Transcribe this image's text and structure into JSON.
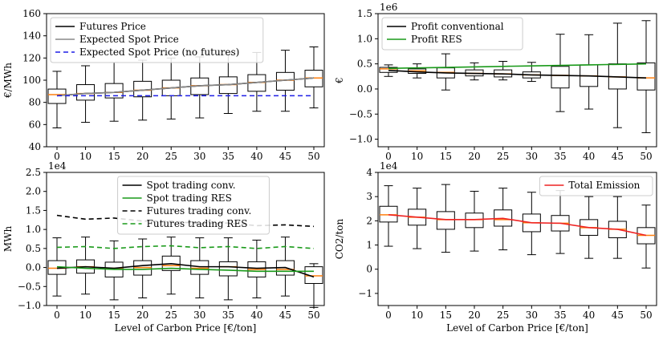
{
  "chart_data": [
    {
      "type": "box+line",
      "ylabel": "€/MWh",
      "xlabel": "",
      "ylim": [
        40,
        160
      ],
      "yticks": [
        40,
        60,
        80,
        100,
        120,
        140,
        160
      ],
      "categories": [
        "0",
        "10",
        "15",
        "20",
        "25",
        "30",
        "35",
        "40",
        "45",
        "50"
      ],
      "ytick_labels": [
        "40",
        "60",
        "80",
        "100",
        "120",
        "140",
        "160"
      ],
      "boxes": [
        {
          "wlo": 57,
          "q1": 79,
          "med": 87,
          "q3": 92,
          "whi": 108
        },
        {
          "wlo": 62,
          "q1": 82,
          "med": 88,
          "q3": 96,
          "whi": 113
        },
        {
          "wlo": 63,
          "q1": 84,
          "med": 89,
          "q3": 97,
          "whi": 116
        },
        {
          "wlo": 64,
          "q1": 85,
          "med": 91,
          "q3": 99,
          "whi": 118
        },
        {
          "wlo": 65,
          "q1": 86,
          "med": 93,
          "q3": 100,
          "whi": 120
        },
        {
          "wlo": 66,
          "q1": 87,
          "med": 95,
          "q3": 102,
          "whi": 121
        },
        {
          "wlo": 70,
          "q1": 88,
          "med": 96,
          "q3": 103,
          "whi": 123
        },
        {
          "wlo": 72,
          "q1": 90,
          "med": 98,
          "q3": 105,
          "whi": 125
        },
        {
          "wlo": 72,
          "q1": 91,
          "med": 100,
          "q3": 107,
          "whi": 127
        },
        {
          "wlo": 75,
          "q1": 94,
          "med": 102,
          "q3": 109,
          "whi": 130
        }
      ],
      "series": [
        {
          "name": "Futures Price",
          "color": "#000000",
          "dash": "",
          "values": [
            86,
            88,
            89,
            91,
            93,
            95,
            96,
            98,
            100,
            102
          ]
        },
        {
          "name": "Expected Spot Price",
          "color": "#888888",
          "dash": "",
          "values": [
            86,
            88,
            89,
            91,
            93,
            95,
            96,
            98,
            100,
            102
          ]
        },
        {
          "name": "Expected Spot Price (no futures)",
          "color": "#1f1fe6",
          "dash": "6,4",
          "values": [
            86,
            86,
            86,
            86,
            86,
            86,
            86,
            86,
            86,
            86
          ]
        }
      ],
      "legend": "top-left",
      "exponent": ""
    },
    {
      "type": "box+line",
      "ylabel": "€",
      "xlabel": "",
      "ylim": [
        -1.15,
        1.5
      ],
      "yticks": [
        -1.0,
        -0.5,
        0.0,
        0.5,
        1.0,
        1.5
      ],
      "categories": [
        "0",
        "10",
        "15",
        "20",
        "25",
        "30",
        "35",
        "40",
        "45",
        "50"
      ],
      "ytick_labels": [
        "−1.0",
        "−0.5",
        "0.0",
        "0.5",
        "1.0",
        "1.5"
      ],
      "boxes": [
        {
          "wlo": 0.25,
          "q1": 0.33,
          "med": 0.4,
          "q3": 0.43,
          "whi": 0.48
        },
        {
          "wlo": 0.22,
          "q1": 0.31,
          "med": 0.36,
          "q3": 0.4,
          "whi": 0.5
        },
        {
          "wlo": -0.02,
          "q1": 0.22,
          "med": 0.33,
          "q3": 0.42,
          "whi": 0.7
        },
        {
          "wlo": 0.18,
          "q1": 0.26,
          "med": 0.31,
          "q3": 0.38,
          "whi": 0.52
        },
        {
          "wlo": 0.18,
          "q1": 0.24,
          "med": 0.3,
          "q3": 0.38,
          "whi": 0.55
        },
        {
          "wlo": 0.15,
          "q1": 0.22,
          "med": 0.28,
          "q3": 0.34,
          "whi": 0.53
        },
        {
          "wlo": -0.45,
          "q1": 0.02,
          "med": 0.27,
          "q3": 0.45,
          "whi": 1.09
        },
        {
          "wlo": -0.4,
          "q1": 0.05,
          "med": 0.26,
          "q3": 0.48,
          "whi": 1.08
        },
        {
          "wlo": -0.77,
          "q1": 0.0,
          "med": 0.24,
          "q3": 0.5,
          "whi": 1.31
        },
        {
          "wlo": -0.87,
          "q1": -0.02,
          "med": 0.22,
          "q3": 0.52,
          "whi": 1.36
        }
      ],
      "series": [
        {
          "name": "Profit conventional",
          "color": "#000000",
          "dash": "",
          "values": [
            0.37,
            0.34,
            0.32,
            0.31,
            0.3,
            0.28,
            0.27,
            0.26,
            0.24,
            0.22
          ]
        },
        {
          "name": "Profit RES",
          "color": "#1a9a1a",
          "dash": "",
          "values": [
            0.41,
            0.42,
            0.43,
            0.44,
            0.45,
            0.46,
            0.47,
            0.48,
            0.49,
            0.5
          ]
        }
      ],
      "legend": "top-left",
      "exponent": "1e6"
    },
    {
      "type": "box+line",
      "ylabel": "MWh",
      "xlabel": "Level of Carbon Price [€/ton]",
      "ylim": [
        -1.0,
        2.5
      ],
      "yticks": [
        -1.0,
        -0.5,
        0.0,
        0.5,
        1.0,
        1.5,
        2.0,
        2.5
      ],
      "categories": [
        "0",
        "10",
        "15",
        "20",
        "25",
        "30",
        "35",
        "40",
        "45",
        "50"
      ],
      "ytick_labels": [
        "−1.0",
        "−0.5",
        "0.0",
        "0.5",
        "1.0",
        "1.5",
        "2.0",
        "2.5"
      ],
      "boxes": [
        {
          "wlo": -0.75,
          "q1": -0.18,
          "med": -0.02,
          "q3": 0.18,
          "whi": 0.78
        },
        {
          "wlo": -0.7,
          "q1": -0.15,
          "med": 0.02,
          "q3": 0.2,
          "whi": 0.8
        },
        {
          "wlo": -0.85,
          "q1": -0.25,
          "med": -0.02,
          "q3": 0.14,
          "whi": 0.7
        },
        {
          "wlo": -0.8,
          "q1": -0.2,
          "med": 0.0,
          "q3": 0.18,
          "whi": 0.75
        },
        {
          "wlo": -0.7,
          "q1": -0.08,
          "med": 0.05,
          "q3": 0.3,
          "whi": 0.8
        },
        {
          "wlo": -0.8,
          "q1": -0.18,
          "med": -0.02,
          "q3": 0.18,
          "whi": 0.78
        },
        {
          "wlo": -0.85,
          "q1": -0.22,
          "med": 0.02,
          "q3": 0.15,
          "whi": 0.78
        },
        {
          "wlo": -0.8,
          "q1": -0.25,
          "med": -0.05,
          "q3": 0.15,
          "whi": 0.72
        },
        {
          "wlo": -0.75,
          "q1": -0.2,
          "med": -0.05,
          "q3": 0.18,
          "whi": 0.8
        },
        {
          "wlo": -1.05,
          "q1": -0.42,
          "med": -0.22,
          "q3": 0.02,
          "whi": 0.1
        }
      ],
      "series": [
        {
          "name": "Spot trading conv.",
          "color": "#000000",
          "dash": "",
          "values": [
            -0.02,
            0.02,
            -0.02,
            0.05,
            0.1,
            0.02,
            0.02,
            -0.02,
            0.0,
            -0.25
          ]
        },
        {
          "name": "Spot trading RES",
          "color": "#1a9a1a",
          "dash": "",
          "values": [
            0.02,
            -0.02,
            -0.05,
            -0.05,
            -0.02,
            -0.05,
            -0.07,
            -0.1,
            -0.1,
            -0.1
          ]
        },
        {
          "name": "Futures trading conv.",
          "color": "#000000",
          "dash": "6,4",
          "values": [
            1.37,
            1.27,
            1.3,
            1.22,
            1.22,
            1.15,
            1.17,
            1.1,
            1.12,
            1.08
          ]
        },
        {
          "name": "Futures trading RES",
          "color": "#1a9a1a",
          "dash": "6,4",
          "values": [
            0.53,
            0.55,
            0.5,
            0.55,
            0.57,
            0.52,
            0.55,
            0.5,
            0.55,
            0.5
          ]
        }
      ],
      "legend": "top-center",
      "exponent": "1e4"
    },
    {
      "type": "box+line",
      "ylabel": "CO2/ton",
      "xlabel": "Level of Carbon Price [€/ton]",
      "ylim": [
        -1.5,
        4.0
      ],
      "yticks": [
        -1,
        0,
        1,
        2,
        3,
        4
      ],
      "categories": [
        "0",
        "10",
        "15",
        "20",
        "25",
        "30",
        "35",
        "40",
        "45",
        "50"
      ],
      "ytick_labels": [
        "−1",
        "0",
        "1",
        "2",
        "3",
        "4"
      ],
      "boxes": [
        {
          "wlo": 0.95,
          "q1": 1.95,
          "med": 2.25,
          "q3": 2.6,
          "whi": 3.45
        },
        {
          "wlo": 0.85,
          "q1": 1.82,
          "med": 2.15,
          "q3": 2.48,
          "whi": 3.35
        },
        {
          "wlo": 0.7,
          "q1": 1.65,
          "med": 2.05,
          "q3": 2.38,
          "whi": 3.5
        },
        {
          "wlo": 0.75,
          "q1": 1.72,
          "med": 2.05,
          "q3": 2.32,
          "whi": 3.22
        },
        {
          "wlo": 0.8,
          "q1": 1.78,
          "med": 2.05,
          "q3": 2.45,
          "whi": 3.35
        },
        {
          "wlo": 0.6,
          "q1": 1.55,
          "med": 1.92,
          "q3": 2.28,
          "whi": 3.18
        },
        {
          "wlo": 0.65,
          "q1": 1.58,
          "med": 1.9,
          "q3": 2.22,
          "whi": 3.25
        },
        {
          "wlo": 0.45,
          "q1": 1.4,
          "med": 1.72,
          "q3": 2.05,
          "whi": 3.0
        },
        {
          "wlo": 0.45,
          "q1": 1.3,
          "med": 1.65,
          "q3": 1.98,
          "whi": 3.0
        },
        {
          "wlo": 0.05,
          "q1": 1.05,
          "med": 1.4,
          "q3": 1.72,
          "whi": 2.65
        }
      ],
      "series": [
        {
          "name": "Total Emission",
          "color": "#ee2222",
          "dash": "",
          "values": [
            2.25,
            2.15,
            2.05,
            2.05,
            2.1,
            1.92,
            1.9,
            1.72,
            1.65,
            1.4
          ]
        }
      ],
      "legend": "top-right",
      "exponent": "1e4"
    }
  ]
}
